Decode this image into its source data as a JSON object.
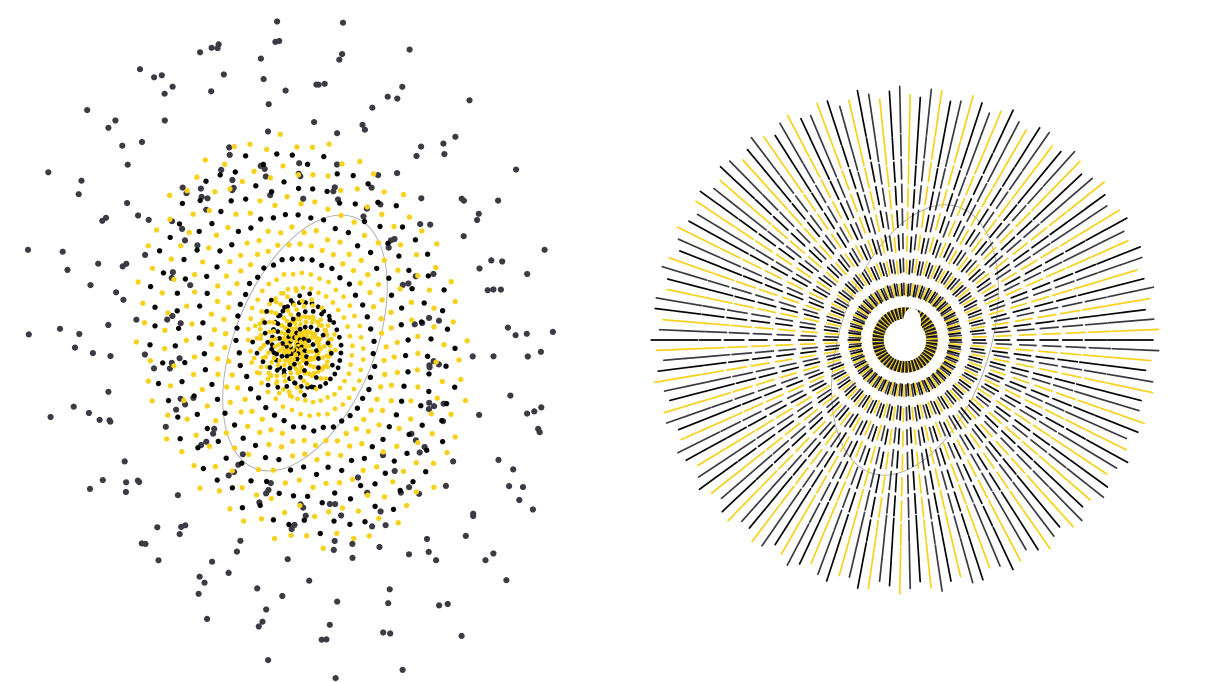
{
  "colors": {
    "background": "#ffffff",
    "yellow": "#f7d11c",
    "black": "#050505",
    "gray": "#3c3a44",
    "guide": "#a8a8a8"
  },
  "panels": [
    {
      "name": "dot-spiral",
      "style": "dots",
      "rings": 18,
      "points_per_ring": 75,
      "color_bands": [
        "gray",
        "black",
        "yellow"
      ]
    },
    {
      "name": "dash-starburst",
      "style": "radial-dashes",
      "spokes": 150,
      "dashes_per_spoke": 10,
      "color_cycle": [
        "black",
        "gray",
        "yellow"
      ]
    }
  ]
}
